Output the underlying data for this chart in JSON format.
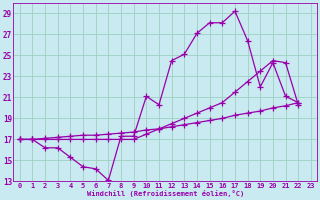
{
  "xlabel": "Windchill (Refroidissement éolien,°C)",
  "background_color": "#c8eaf0",
  "grid_color": "#9ecfc0",
  "line_color": "#9900aa",
  "xlim": [
    -0.5,
    23.5
  ],
  "ylim": [
    13,
    30
  ],
  "yticks": [
    13,
    15,
    17,
    19,
    21,
    23,
    25,
    27,
    29
  ],
  "xticks": [
    0,
    1,
    2,
    3,
    4,
    5,
    6,
    7,
    8,
    9,
    10,
    11,
    12,
    13,
    14,
    15,
    16,
    17,
    18,
    19,
    20,
    21,
    22,
    23
  ],
  "line1_x": [
    0,
    1,
    2,
    3,
    4,
    5,
    6,
    7,
    8,
    9,
    10,
    11,
    12,
    13,
    14,
    15,
    16,
    17,
    18,
    19,
    20,
    21,
    22
  ],
  "line1_y": [
    17.0,
    17.0,
    16.2,
    16.2,
    15.3,
    14.4,
    14.2,
    13.1,
    17.3,
    17.3,
    21.1,
    20.3,
    24.5,
    25.1,
    27.1,
    28.1,
    28.1,
    29.2,
    26.4,
    22.0,
    24.3,
    21.1,
    20.5
  ],
  "line2_x": [
    0,
    1,
    2,
    3,
    4,
    5,
    6,
    7,
    8,
    9,
    10,
    11,
    12,
    13,
    14,
    15,
    16,
    17,
    18,
    19,
    20,
    21,
    22
  ],
  "line2_y": [
    17.0,
    17.0,
    17.1,
    17.2,
    17.3,
    17.4,
    17.4,
    17.5,
    17.6,
    17.7,
    17.9,
    18.0,
    18.2,
    18.4,
    18.6,
    18.8,
    19.0,
    19.3,
    19.5,
    19.7,
    20.0,
    20.2,
    20.5
  ],
  "line3_x": [
    0,
    1,
    2,
    3,
    4,
    5,
    6,
    7,
    8,
    9,
    10,
    11,
    12,
    13,
    14,
    15,
    16,
    17,
    18,
    19,
    20,
    21,
    22
  ],
  "line3_y": [
    17.0,
    17.0,
    17.0,
    17.0,
    17.0,
    17.0,
    17.0,
    17.0,
    17.0,
    17.0,
    17.5,
    18.0,
    18.5,
    19.0,
    19.5,
    20.0,
    20.5,
    21.5,
    22.5,
    23.5,
    24.5,
    24.3,
    20.3
  ]
}
